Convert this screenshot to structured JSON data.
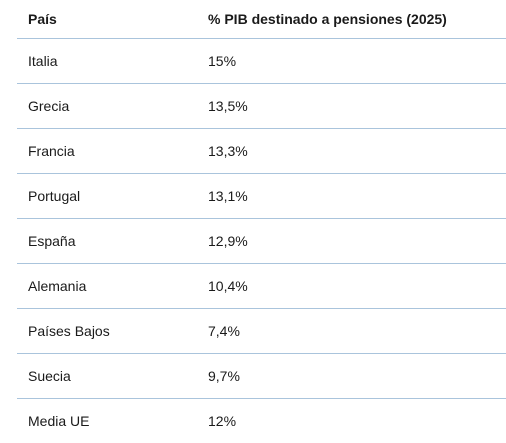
{
  "table": {
    "headers": [
      "País",
      "% PIB destinado a pensiones (2025)"
    ],
    "rows": [
      [
        "Italia",
        "15%"
      ],
      [
        "Grecia",
        "13,5%"
      ],
      [
        "Francia",
        "13,3%"
      ],
      [
        "Portugal",
        "13,1%"
      ],
      [
        "España",
        "12,9%"
      ],
      [
        "Alemania",
        "10,4%"
      ],
      [
        "Países Bajos",
        "7,4%"
      ],
      [
        "Suecia",
        "9,7%"
      ],
      [
        "Media UE",
        "12%"
      ]
    ]
  }
}
